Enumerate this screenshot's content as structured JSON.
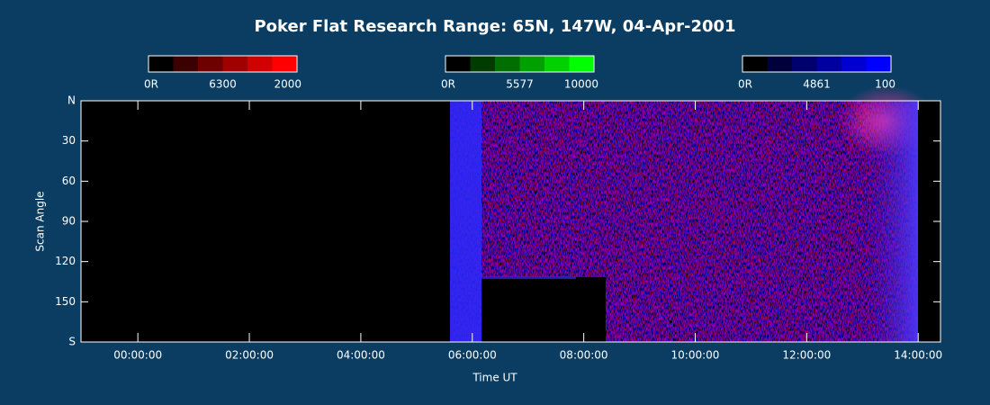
{
  "chart_data": {
    "type": "keogram",
    "title": "Poker Flat Research Range: 65N, 147W, 04-Apr-2001",
    "x_label": "Time UT",
    "y_label": "Scan Angle",
    "xlim": [
      -1.02,
      14.4
    ],
    "xticks": [
      {
        "value": 0,
        "label": "00:00:00"
      },
      {
        "value": 2,
        "label": "02:00:00"
      },
      {
        "value": 4,
        "label": "04:00:00"
      },
      {
        "value": 6,
        "label": "06:00:00"
      },
      {
        "value": 8,
        "label": "08:00:00"
      },
      {
        "value": 10,
        "label": "10:00:00"
      },
      {
        "value": 12,
        "label": "12:00:00"
      },
      {
        "value": 14,
        "label": "14:00:00"
      }
    ],
    "ylim": [
      0,
      180
    ],
    "yticks": [
      {
        "value": 0,
        "label": "N"
      },
      30,
      60,
      90,
      120,
      150,
      {
        "value": 180,
        "label": "S"
      }
    ],
    "colorbars": [
      {
        "min_label": "0R",
        "wavelength": "6300",
        "max": 2000,
        "colors": [
          "#000000",
          "#3c0000",
          "#6e0000",
          "#a00000",
          "#d20000",
          "#ff0000"
        ]
      },
      {
        "min_label": "0R",
        "wavelength": "5577",
        "max": 10000,
        "colors": [
          "#000000",
          "#003c00",
          "#006e00",
          "#00a000",
          "#00d200",
          "#00ff00"
        ]
      },
      {
        "min_label": "0R",
        "wavelength": "4861",
        "max": 100,
        "colors": [
          "#000000",
          "#00003c",
          "#00006e",
          "#0000a0",
          "#0000d2",
          "#0000ff"
        ]
      }
    ]
  }
}
